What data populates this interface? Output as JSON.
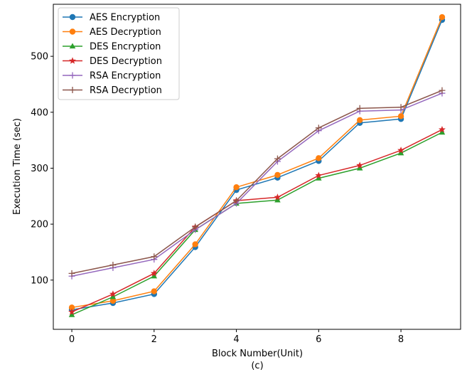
{
  "chart_data": {
    "type": "line",
    "title": "",
    "xlabel": "Block Number(Unit)",
    "sublabel": "(c)",
    "ylabel": "Execution Time (sec)",
    "xlim": [
      -0.45,
      9.45
    ],
    "ylim": [
      12,
      593
    ],
    "xticks": [
      0,
      2,
      4,
      6,
      8
    ],
    "yticks": [
      100,
      200,
      300,
      400,
      500
    ],
    "grid": false,
    "legend_position": "top-left",
    "x": [
      0,
      1,
      2,
      3,
      4,
      5,
      6,
      7,
      8,
      9
    ],
    "series": [
      {
        "name": "AES Encryption",
        "color": "#1f77b4",
        "marker": "circle",
        "values": [
          47,
          59,
          75,
          159,
          261,
          283,
          313,
          381,
          388,
          565
        ]
      },
      {
        "name": "AES Decryption",
        "color": "#ff7f0e",
        "marker": "circle",
        "values": [
          51,
          63,
          80,
          164,
          266,
          288,
          318,
          386,
          393,
          570
        ]
      },
      {
        "name": "DES Encryption",
        "color": "#2ca02c",
        "marker": "triangle",
        "values": [
          38,
          70,
          107,
          190,
          237,
          243,
          282,
          300,
          327,
          364
        ]
      },
      {
        "name": "DES Decryption",
        "color": "#d62728",
        "marker": "star",
        "values": [
          43,
          75,
          112,
          195,
          242,
          248,
          287,
          305,
          332,
          369
        ]
      },
      {
        "name": "RSA Encryption",
        "color": "#9467bd",
        "marker": "plus",
        "values": [
          107,
          122,
          137,
          190,
          237,
          312,
          367,
          402,
          404,
          434
        ]
      },
      {
        "name": "RSA Decryption",
        "color": "#8c564b",
        "marker": "plus",
        "values": [
          112,
          127,
          142,
          195,
          242,
          317,
          372,
          407,
          409,
          439
        ]
      }
    ]
  }
}
